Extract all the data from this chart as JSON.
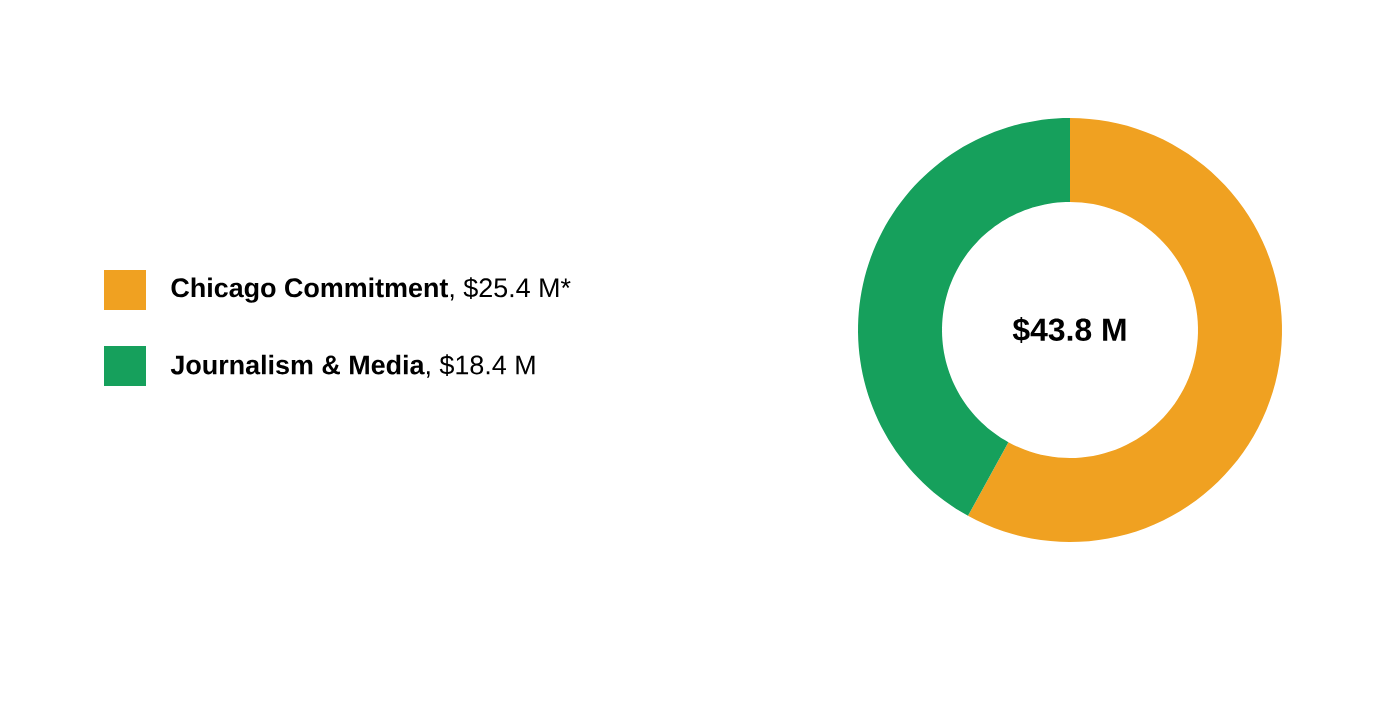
{
  "chart_data": {
    "type": "donut",
    "categories": [
      "**Chicago Commitment**, $25.4 M*",
      "**Journalism & Media**, $18.4 M"
    ],
    "values": [
      25.4,
      18.4
    ],
    "colors": [
      "#f0a121",
      "#16a05c"
    ],
    "legend": "left",
    "annotations": [
      "$43.8 M"
    ]
  }
}
